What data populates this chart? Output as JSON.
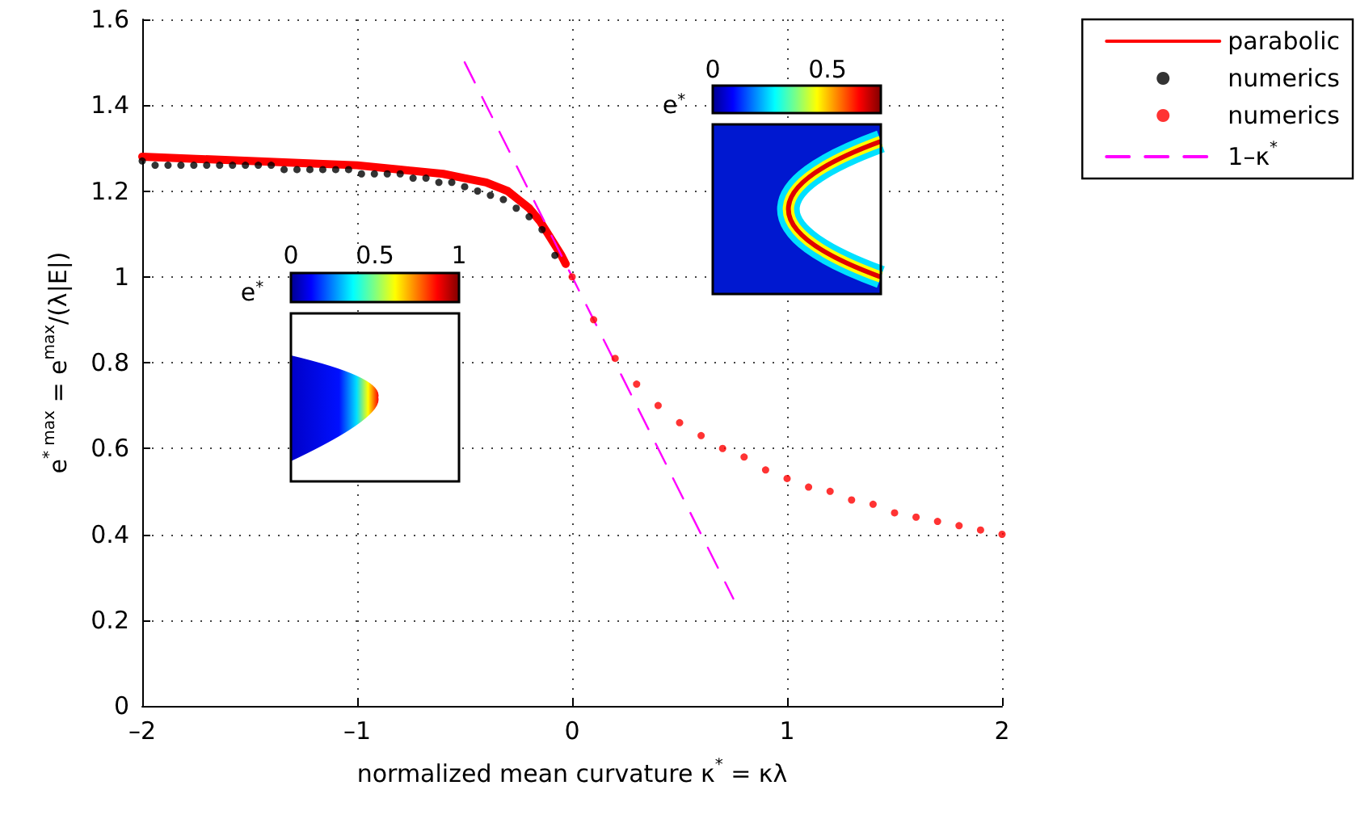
{
  "chart_data": {
    "type": "line",
    "xlabel": "normalized mean curvature κ$^{*}$ = κλ",
    "ylabel": "e$^{* max}$ = e$^{max}$/(λ|E|)",
    "xlim": [
      -2,
      2
    ],
    "xticks": [
      {
        "value": -2,
        "label": "–2"
      },
      {
        "value": -1,
        "label": "–1"
      },
      0,
      1,
      2
    ],
    "ylim": [
      0,
      1.6
    ],
    "yticks": [
      0,
      0.2,
      0.4,
      0.6,
      0.8,
      1,
      1.2,
      1.4,
      1.6
    ],
    "grid": true,
    "legend": "top right",
    "annotations": [
      "e$^{*}$",
      "0",
      "0.5",
      "1",
      "e$^{*}$",
      "0",
      "0.5"
    ],
    "series": [
      {
        "name": "parabolic",
        "color": "#ff0000",
        "marker": "none",
        "line_style": "solid",
        "x": [
          -2,
          -1.75,
          -1.5,
          -1.25,
          -1,
          -0.8,
          -0.6,
          -0.5,
          -0.4,
          -0.3,
          -0.25,
          -0.2,
          -0.15,
          -0.1,
          -0.05,
          -0.03
        ],
        "values": [
          1.28,
          1.275,
          1.27,
          1.265,
          1.26,
          1.25,
          1.24,
          1.23,
          1.22,
          1.2,
          1.18,
          1.16,
          1.13,
          1.09,
          1.05,
          1.03
        ]
      },
      {
        "name": "numerics",
        "type": "scatter",
        "color": "#000000",
        "marker": "circle",
        "x": [
          -2,
          -1.94,
          -1.88,
          -1.82,
          -1.76,
          -1.7,
          -1.64,
          -1.58,
          -1.52,
          -1.46,
          -1.4,
          -1.34,
          -1.28,
          -1.22,
          -1.16,
          -1.1,
          -1.04,
          -0.98,
          -0.92,
          -0.86,
          -0.8,
          -0.74,
          -0.68,
          -0.62,
          -0.56,
          -0.5,
          -0.44,
          -0.38,
          -0.32,
          -0.26,
          -0.2,
          -0.14,
          -0.08
        ],
        "values": [
          1.27,
          1.26,
          1.26,
          1.26,
          1.26,
          1.26,
          1.26,
          1.26,
          1.26,
          1.26,
          1.26,
          1.25,
          1.25,
          1.25,
          1.25,
          1.25,
          1.25,
          1.24,
          1.24,
          1.24,
          1.24,
          1.23,
          1.23,
          1.22,
          1.22,
          1.21,
          1.2,
          1.19,
          1.18,
          1.16,
          1.14,
          1.11,
          1.05
        ]
      },
      {
        "name": "numerics",
        "type": "scatter",
        "color": "#ff0000",
        "marker": "circle",
        "x": [
          0,
          0.1,
          0.2,
          0.3,
          0.4,
          0.5,
          0.6,
          0.7,
          0.8,
          0.9,
          1,
          1.1,
          1.2,
          1.3,
          1.4,
          1.5,
          1.6,
          1.7,
          1.8,
          1.9,
          2
        ],
        "values": [
          1.0,
          0.9,
          0.81,
          0.75,
          0.7,
          0.66,
          0.63,
          0.6,
          0.58,
          0.55,
          0.53,
          0.51,
          0.5,
          0.48,
          0.47,
          0.45,
          0.44,
          0.43,
          0.42,
          0.41,
          0.4
        ]
      },
      {
        "name": "1–κ$^{*}$",
        "color": "#ff00ff",
        "marker": "none",
        "line_style": "dashed",
        "x": [
          -0.5,
          0.75
        ],
        "values": [
          1.5,
          0.25
        ]
      }
    ]
  }
}
